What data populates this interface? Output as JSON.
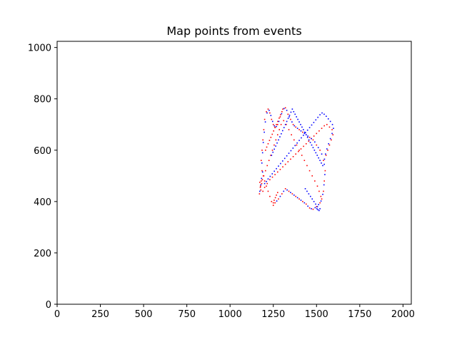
{
  "chart_data": {
    "type": "scatter",
    "title": "Map points from events",
    "xlabel": "",
    "ylabel": "",
    "xlim": [
      0,
      2048
    ],
    "ylim": [
      0,
      1024
    ],
    "x_ticks": [
      0,
      250,
      500,
      750,
      1000,
      1250,
      1500,
      1750,
      2000
    ],
    "y_ticks": [
      0,
      200,
      400,
      600,
      800,
      1000
    ],
    "grid": false,
    "legend": "none",
    "series": [
      {
        "color": "#ff0000",
        "points": [
          [
            1170,
            430
          ],
          [
            1175,
            455
          ],
          [
            1180,
            480
          ],
          [
            1185,
            520
          ],
          [
            1180,
            560
          ],
          [
            1185,
            600
          ],
          [
            1190,
            640
          ],
          [
            1195,
            680
          ],
          [
            1200,
            720
          ],
          [
            1210,
            750
          ],
          [
            1220,
            760
          ],
          [
            1230,
            745
          ],
          [
            1240,
            720
          ],
          [
            1250,
            700
          ],
          [
            1260,
            690
          ],
          [
            1275,
            700
          ],
          [
            1290,
            730
          ],
          [
            1305,
            760
          ],
          [
            1320,
            765
          ],
          [
            1335,
            740
          ],
          [
            1350,
            720
          ],
          [
            1365,
            700
          ],
          [
            1380,
            690
          ],
          [
            1400,
            680
          ],
          [
            1420,
            670
          ],
          [
            1440,
            660
          ],
          [
            1460,
            650
          ],
          [
            1480,
            640
          ],
          [
            1500,
            620
          ],
          [
            1520,
            600
          ],
          [
            1540,
            560
          ],
          [
            1550,
            520
          ],
          [
            1545,
            480
          ],
          [
            1540,
            440
          ],
          [
            1530,
            410
          ],
          [
            1520,
            395
          ],
          [
            1500,
            380
          ],
          [
            1480,
            370
          ],
          [
            1460,
            375
          ],
          [
            1440,
            390
          ],
          [
            1420,
            400
          ],
          [
            1400,
            410
          ],
          [
            1380,
            420
          ],
          [
            1360,
            430
          ],
          [
            1340,
            440
          ],
          [
            1320,
            450
          ],
          [
            1300,
            430
          ],
          [
            1280,
            410
          ],
          [
            1260,
            395
          ],
          [
            1250,
            385
          ],
          [
            1240,
            400
          ],
          [
            1230,
            420
          ],
          [
            1220,
            440
          ],
          [
            1210,
            460
          ],
          [
            1200,
            480
          ],
          [
            1195,
            500
          ],
          [
            1205,
            520
          ],
          [
            1215,
            540
          ],
          [
            1225,
            560
          ],
          [
            1235,
            580
          ],
          [
            1245,
            600
          ],
          [
            1255,
            620
          ],
          [
            1265,
            640
          ],
          [
            1275,
            660
          ],
          [
            1285,
            680
          ],
          [
            1295,
            700
          ],
          [
            1310,
            715
          ],
          [
            1325,
            700
          ],
          [
            1340,
            680
          ],
          [
            1355,
            660
          ],
          [
            1370,
            640
          ],
          [
            1385,
            620
          ],
          [
            1400,
            600
          ],
          [
            1415,
            580
          ],
          [
            1430,
            560
          ],
          [
            1445,
            540
          ],
          [
            1460,
            520
          ],
          [
            1475,
            500
          ],
          [
            1490,
            480
          ],
          [
            1505,
            460
          ],
          [
            1515,
            440
          ],
          [
            1525,
            420
          ],
          [
            1190,
            440
          ],
          [
            1200,
            455
          ],
          [
            1215,
            470
          ],
          [
            1230,
            485
          ],
          [
            1245,
            495
          ],
          [
            1260,
            505
          ],
          [
            1275,
            515
          ],
          [
            1290,
            525
          ],
          [
            1305,
            535
          ],
          [
            1320,
            545
          ],
          [
            1335,
            555
          ],
          [
            1350,
            565
          ],
          [
            1365,
            575
          ],
          [
            1380,
            585
          ],
          [
            1395,
            595
          ],
          [
            1410,
            605
          ],
          [
            1425,
            615
          ],
          [
            1440,
            625
          ],
          [
            1455,
            635
          ],
          [
            1470,
            645
          ],
          [
            1485,
            655
          ],
          [
            1500,
            665
          ],
          [
            1515,
            675
          ],
          [
            1530,
            685
          ],
          [
            1545,
            695
          ],
          [
            1560,
            700
          ],
          [
            1575,
            690
          ],
          [
            1590,
            680
          ],
          [
            1595,
            660
          ],
          [
            1585,
            640
          ],
          [
            1575,
            620
          ],
          [
            1565,
            600
          ],
          [
            1555,
            580
          ],
          [
            1250,
            395
          ],
          [
            1255,
            405
          ],
          [
            1262,
            415
          ],
          [
            1268,
            425
          ],
          [
            1275,
            435
          ],
          [
            1183,
            470
          ],
          [
            1187,
            485
          ],
          [
            1192,
            500
          ],
          [
            1178,
            445
          ],
          [
            1176,
            460
          ],
          [
            1172,
            475
          ],
          [
            1205,
            600
          ],
          [
            1212,
            612
          ],
          [
            1220,
            625
          ],
          [
            1228,
            638
          ],
          [
            1236,
            650
          ],
          [
            1244,
            662
          ],
          [
            1252,
            675
          ],
          [
            1260,
            688
          ],
          [
            1268,
            700
          ],
          [
            1276,
            712
          ],
          [
            1284,
            725
          ],
          [
            1292,
            738
          ],
          [
            1300,
            750
          ]
        ]
      },
      {
        "color": "#0000ff",
        "points": [
          [
            1172,
            440
          ],
          [
            1178,
            465
          ],
          [
            1182,
            490
          ],
          [
            1188,
            515
          ],
          [
            1184,
            550
          ],
          [
            1188,
            590
          ],
          [
            1192,
            630
          ],
          [
            1198,
            670
          ],
          [
            1204,
            710
          ],
          [
            1214,
            745
          ],
          [
            1226,
            755
          ],
          [
            1236,
            735
          ],
          [
            1246,
            712
          ],
          [
            1256,
            695
          ],
          [
            1268,
            692
          ],
          [
            1282,
            712
          ],
          [
            1298,
            742
          ],
          [
            1312,
            762
          ],
          [
            1328,
            755
          ],
          [
            1342,
            730
          ],
          [
            1358,
            710
          ],
          [
            1372,
            695
          ],
          [
            1390,
            685
          ],
          [
            1410,
            675
          ],
          [
            1430,
            665
          ],
          [
            1450,
            655
          ],
          [
            1470,
            645
          ],
          [
            1490,
            632
          ],
          [
            1510,
            610
          ],
          [
            1530,
            585
          ],
          [
            1545,
            545
          ],
          [
            1548,
            505
          ],
          [
            1543,
            465
          ],
          [
            1536,
            428
          ],
          [
            1526,
            402
          ],
          [
            1512,
            388
          ],
          [
            1492,
            376
          ],
          [
            1470,
            372
          ],
          [
            1450,
            382
          ],
          [
            1430,
            395
          ],
          [
            1410,
            405
          ],
          [
            1390,
            415
          ],
          [
            1370,
            425
          ],
          [
            1350,
            435
          ],
          [
            1330,
            445
          ],
          [
            1310,
            440
          ],
          [
            1290,
            420
          ],
          [
            1270,
            402
          ],
          [
            1502,
            372
          ],
          [
            1508,
            368
          ],
          [
            1515,
            365
          ],
          [
            1520,
            372
          ],
          [
            1505,
            380
          ],
          [
            1495,
            390
          ],
          [
            1485,
            400
          ],
          [
            1475,
            410
          ],
          [
            1465,
            420
          ],
          [
            1455,
            430
          ],
          [
            1445,
            440
          ],
          [
            1435,
            450
          ],
          [
            1200,
            470
          ],
          [
            1210,
            478
          ],
          [
            1220,
            488
          ],
          [
            1232,
            498
          ],
          [
            1244,
            508
          ],
          [
            1256,
            518
          ],
          [
            1268,
            528
          ],
          [
            1280,
            538
          ],
          [
            1292,
            548
          ],
          [
            1304,
            558
          ],
          [
            1316,
            568
          ],
          [
            1328,
            578
          ],
          [
            1340,
            588
          ],
          [
            1352,
            598
          ],
          [
            1364,
            608
          ],
          [
            1376,
            618
          ],
          [
            1388,
            628
          ],
          [
            1400,
            638
          ],
          [
            1412,
            648
          ],
          [
            1424,
            658
          ],
          [
            1436,
            668
          ],
          [
            1448,
            678
          ],
          [
            1460,
            688
          ],
          [
            1472,
            698
          ],
          [
            1484,
            708
          ],
          [
            1496,
            718
          ],
          [
            1508,
            728
          ],
          [
            1520,
            738
          ],
          [
            1532,
            745
          ],
          [
            1544,
            740
          ],
          [
            1556,
            732
          ],
          [
            1568,
            722
          ],
          [
            1580,
            712
          ],
          [
            1592,
            700
          ],
          [
            1598,
            685
          ],
          [
            1590,
            665
          ],
          [
            1580,
            645
          ],
          [
            1570,
            625
          ],
          [
            1560,
            605
          ],
          [
            1552,
            585
          ],
          [
            1546,
            565
          ],
          [
            1240,
            580
          ],
          [
            1248,
            592
          ],
          [
            1256,
            604
          ],
          [
            1264,
            616
          ],
          [
            1272,
            628
          ],
          [
            1280,
            640
          ],
          [
            1288,
            652
          ],
          [
            1296,
            664
          ],
          [
            1304,
            676
          ],
          [
            1312,
            688
          ],
          [
            1320,
            700
          ],
          [
            1328,
            712
          ],
          [
            1336,
            724
          ],
          [
            1344,
            736
          ],
          [
            1352,
            748
          ],
          [
            1360,
            760
          ],
          [
            1368,
            750
          ],
          [
            1376,
            740
          ],
          [
            1384,
            730
          ],
          [
            1392,
            720
          ],
          [
            1400,
            710
          ],
          [
            1408,
            700
          ],
          [
            1416,
            690
          ],
          [
            1424,
            680
          ],
          [
            1432,
            670
          ],
          [
            1440,
            660
          ],
          [
            1448,
            650
          ],
          [
            1456,
            640
          ],
          [
            1464,
            630
          ],
          [
            1472,
            620
          ],
          [
            1480,
            610
          ],
          [
            1488,
            600
          ],
          [
            1496,
            590
          ],
          [
            1504,
            580
          ],
          [
            1512,
            570
          ],
          [
            1520,
            560
          ],
          [
            1528,
            550
          ],
          [
            1536,
            540
          ]
        ]
      }
    ]
  }
}
